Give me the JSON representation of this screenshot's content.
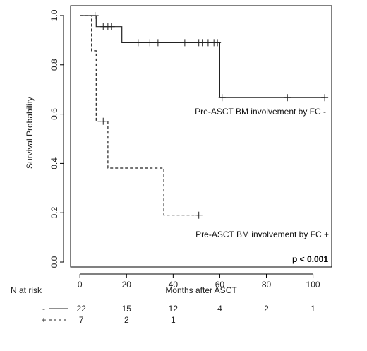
{
  "chart_data": {
    "type": "line",
    "title": "",
    "xlabel": "Months after ASCT",
    "ylabel": "Survival Probability",
    "xlim": [
      -4,
      108
    ],
    "ylim": [
      -0.02,
      1.04
    ],
    "x_ticks": [
      "0",
      "20",
      "40",
      "60",
      "80",
      "100"
    ],
    "y_ticks": [
      "0.0",
      "0.2",
      "0.4",
      "0.6",
      "0.8",
      "1.0"
    ],
    "grid": false,
    "series": [
      {
        "name": "Pre-ASCT BM involvement by FC -",
        "style": "solid",
        "steps": [
          [
            0,
            1.0
          ],
          [
            7,
            1.0
          ],
          [
            7,
            0.955
          ],
          [
            18,
            0.955
          ],
          [
            18,
            0.89
          ],
          [
            60,
            0.89
          ],
          [
            60,
            0.667
          ],
          [
            105,
            0.667
          ]
        ],
        "censored": [
          [
            6.5,
            1.0
          ],
          [
            10,
            0.955
          ],
          [
            12,
            0.955
          ],
          [
            13.5,
            0.955
          ],
          [
            25,
            0.89
          ],
          [
            30,
            0.89
          ],
          [
            33.5,
            0.89
          ],
          [
            45,
            0.89
          ],
          [
            51,
            0.89
          ],
          [
            52.5,
            0.89
          ],
          [
            55,
            0.89
          ],
          [
            57.5,
            0.89
          ],
          [
            59,
            0.89
          ],
          [
            61,
            0.667
          ],
          [
            89,
            0.667
          ],
          [
            105,
            0.667
          ]
        ]
      },
      {
        "name": "Pre-ASCT BM involvement by FC +",
        "style": "dashed",
        "steps": [
          [
            0,
            1.0
          ],
          [
            5,
            1.0
          ],
          [
            5,
            0.857
          ],
          [
            7,
            0.857
          ],
          [
            7,
            0.571
          ],
          [
            12,
            0.571
          ],
          [
            12,
            0.381
          ],
          [
            36,
            0.381
          ],
          [
            36,
            0.19
          ],
          [
            51,
            0.19
          ]
        ],
        "censored": [
          [
            10,
            0.571
          ],
          [
            51,
            0.19
          ]
        ]
      }
    ],
    "annotations": {
      "label_minus": "Pre-ASCT BM involvement by FC -",
      "label_plus": "Pre-ASCT BM involvement by FC +",
      "p_value": "p < 0.001"
    },
    "risk_table": {
      "title": "N at risk",
      "rows": [
        {
          "symbol": "-",
          "counts": [
            "22",
            "15",
            "12",
            "4",
            "2",
            "1"
          ]
        },
        {
          "symbol": "+",
          "counts": [
            "7",
            "2",
            "1",
            "",
            "",
            ""
          ]
        }
      ]
    }
  }
}
